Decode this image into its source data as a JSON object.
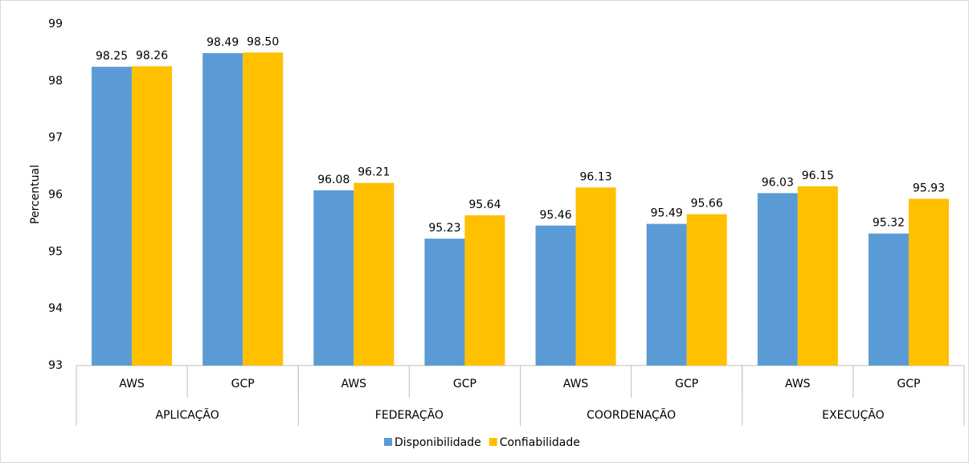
{
  "chart_data": {
    "type": "bar",
    "y_label": "Percentual",
    "categories": [
      "AWS",
      "GCP",
      "AWS",
      "GCP",
      "AWS",
      "GCP",
      "AWS",
      "GCP"
    ],
    "groups": [
      "APLICAÇÃO",
      "FEDERAÇÃO",
      "COORDENAÇÃO",
      "EXECUÇÃO"
    ],
    "series": [
      {
        "name": "Disponibilidade",
        "color": "#5b9bd5",
        "values": [
          98.25,
          98.49,
          96.08,
          95.23,
          95.46,
          95.49,
          96.03,
          95.32
        ],
        "value_labels": [
          "98.25",
          "98.49",
          "96.08",
          "95.23",
          "95.46",
          "95.49",
          "96.03",
          "95.32"
        ]
      },
      {
        "name": "Confiabilidade",
        "color": "#ffc000",
        "values": [
          98.26,
          98.5,
          96.21,
          95.64,
          96.13,
          95.66,
          96.15,
          95.93
        ],
        "value_labels": [
          "98.26",
          "98.50",
          "96.21",
          "95.64",
          "96.13",
          "95.66",
          "96.15",
          "95.93"
        ]
      }
    ],
    "ylim": [
      93,
      99
    ],
    "yticks": [
      93,
      94,
      95,
      96,
      97,
      98,
      99
    ],
    "grid": false,
    "legend": "bottom"
  }
}
